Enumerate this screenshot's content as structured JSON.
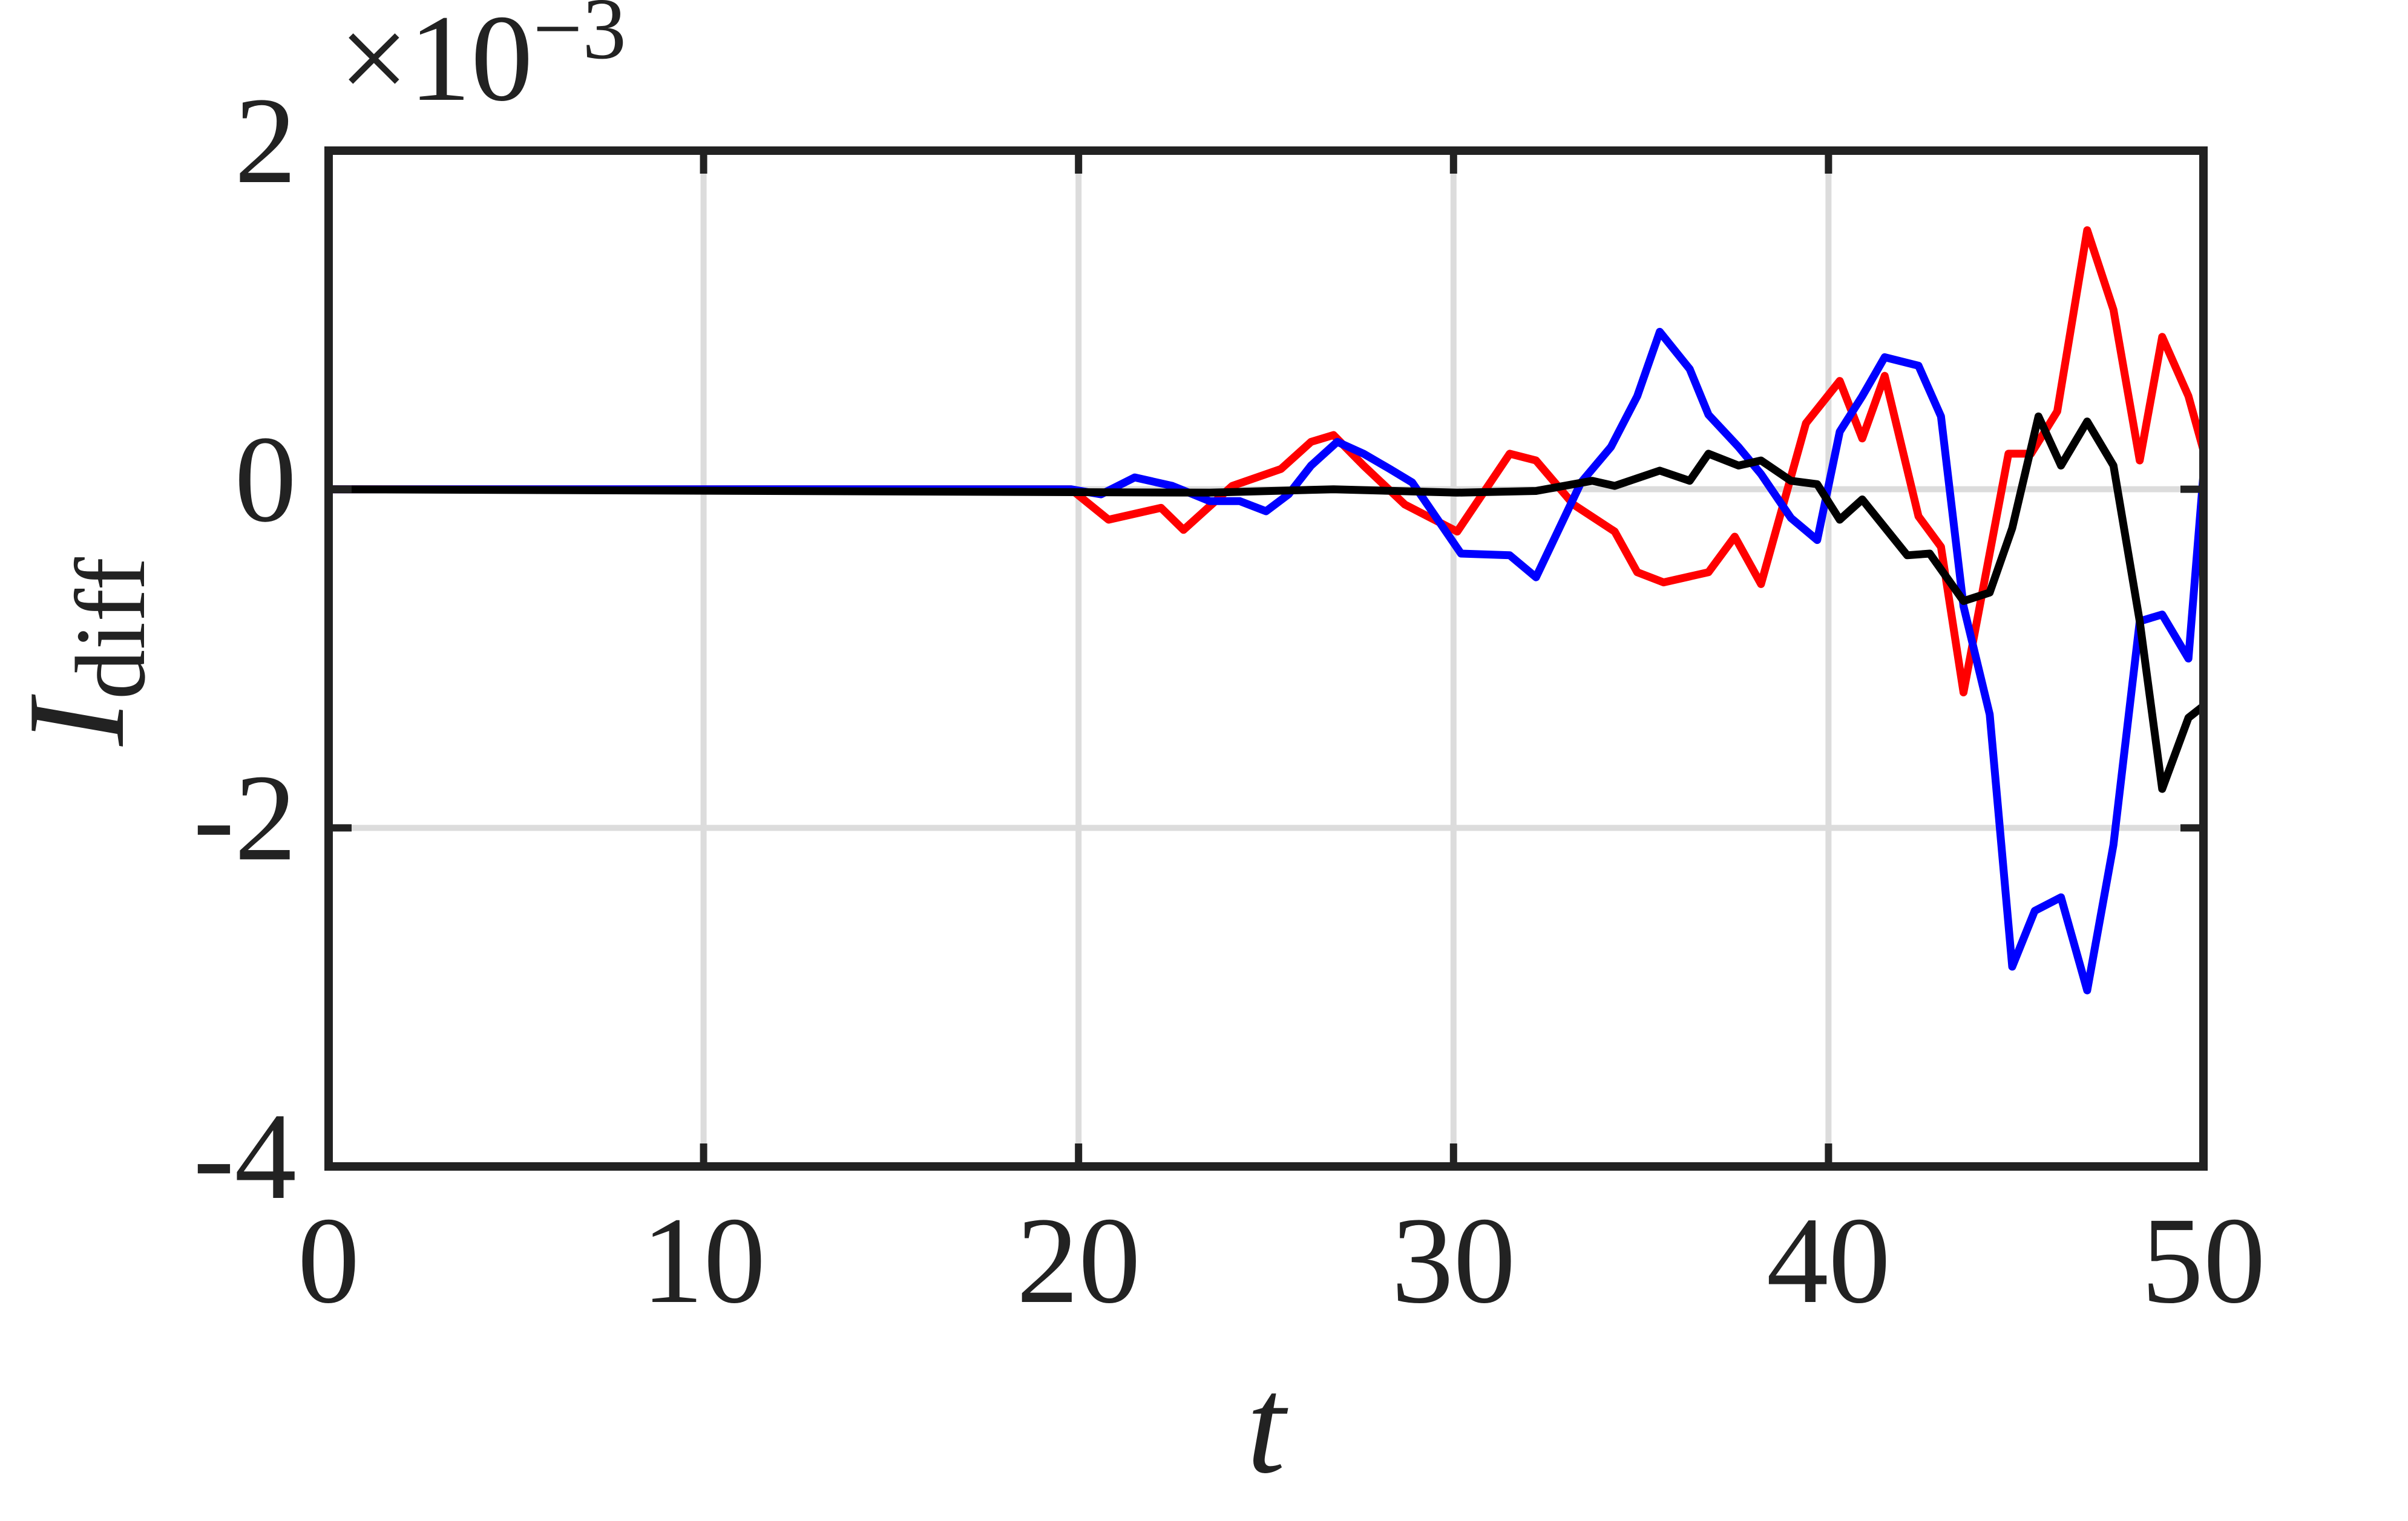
{
  "chart_data": {
    "type": "line",
    "xlabel": "t",
    "ylabel": "I",
    "ylabel_sub": "diff",
    "y_multiplier": {
      "base": "×10",
      "exponent": "−3"
    },
    "xlim": [
      0,
      50
    ],
    "ylim": [
      -4,
      2
    ],
    "xticks": [
      0,
      10,
      20,
      30,
      40,
      50
    ],
    "yticks": [
      -4,
      -2,
      0,
      2
    ],
    "grid": true,
    "series": [
      {
        "color": "#ff0000",
        "x": [
          0,
          19.8,
          20.8,
          22.2,
          22.8,
          24.1,
          25.4,
          26.2,
          26.8,
          27.6,
          28.7,
          30.1,
          31.5,
          32.2,
          33.2,
          34.3,
          34.9,
          35.6,
          36.8,
          37.5,
          38.2,
          39.4,
          40.3,
          40.9,
          41.5,
          42.4,
          43,
          43.6,
          44.8,
          45.4,
          46.1,
          46.9,
          47.6,
          48.3,
          48.9,
          49.6,
          50
        ],
        "values": [
          0,
          0,
          -0.18,
          -0.11,
          -0.24,
          0.02,
          0.12,
          0.28,
          0.32,
          0.14,
          -0.09,
          -0.25,
          0.21,
          0.17,
          -0.09,
          -0.25,
          -0.49,
          -0.55,
          -0.49,
          -0.28,
          -0.56,
          0.39,
          0.64,
          0.3,
          0.67,
          -0.16,
          -0.34,
          -1.2,
          0.21,
          0.21,
          0.46,
          1.53,
          1.06,
          0.17,
          0.9,
          0.55,
          0.23
        ]
      },
      {
        "color": "#0000ff",
        "x": [
          0,
          19.8,
          20.6,
          21.5,
          22.5,
          23.5,
          24.3,
          25,
          25.6,
          26.2,
          26.9,
          27.6,
          28.3,
          28.9,
          30.2,
          31.5,
          32.2,
          33.4,
          34.2,
          34.9,
          35.5,
          36.3,
          36.8,
          37.6,
          38.2,
          39,
          39.7,
          40.3,
          40.9,
          41.5,
          42.4,
          43,
          43.6,
          44.3,
          44.9,
          45.5,
          46.2,
          46.9,
          47.6,
          48.3,
          48.9,
          49.6,
          50
        ],
        "values": [
          0,
          0,
          -0.03,
          0.07,
          0.02,
          -0.07,
          -0.07,
          -0.13,
          -0.03,
          0.14,
          0.28,
          0.21,
          0.12,
          0.04,
          -0.38,
          -0.39,
          -0.52,
          0.04,
          0.25,
          0.55,
          0.93,
          0.71,
          0.44,
          0.25,
          0.09,
          -0.17,
          -0.3,
          0.34,
          0.55,
          0.78,
          0.73,
          0.43,
          -0.69,
          -1.33,
          -2.82,
          -2.49,
          -2.41,
          -2.96,
          -2.1,
          -0.78,
          -0.74,
          -1,
          0.09
        ]
      },
      {
        "color": "#000000",
        "x": [
          0,
          23.5,
          26.8,
          30.1,
          32.2,
          33.7,
          34.3,
          35.5,
          36.3,
          36.8,
          37.6,
          38.2,
          39,
          39.7,
          40.3,
          40.9,
          42.1,
          42.7,
          43.6,
          44.3,
          44.9,
          45.6,
          46.2,
          46.9,
          47.6,
          48.3,
          48.9,
          49.6,
          50
        ],
        "values": [
          0,
          -0.02,
          0,
          -0.02,
          -0.01,
          0.05,
          0.02,
          0.11,
          0.05,
          0.21,
          0.14,
          0.17,
          0.05,
          0.03,
          -0.18,
          -0.06,
          -0.39,
          -0.38,
          -0.66,
          -0.61,
          -0.23,
          0.43,
          0.14,
          0.4,
          0.14,
          -0.78,
          -1.77,
          -1.35,
          -1.28
        ]
      }
    ]
  }
}
